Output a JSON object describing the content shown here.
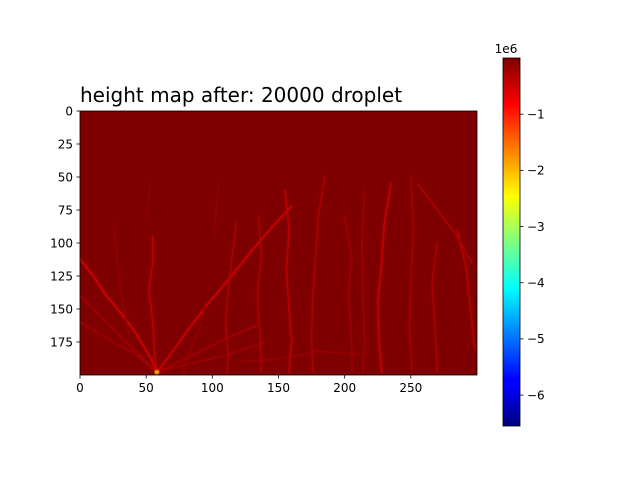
{
  "chart_data": {
    "type": "heatmap",
    "title": "height map after: 20000 droplet",
    "xlabel": "",
    "ylabel": "",
    "xlim": [
      0,
      300
    ],
    "ylim": [
      200,
      0
    ],
    "grid": false,
    "x_ticks": [
      0,
      50,
      100,
      150,
      200,
      250
    ],
    "y_ticks": [
      0,
      25,
      50,
      75,
      100,
      125,
      150,
      175
    ],
    "colormap": "jet",
    "colorbar": {
      "range": [
        -6.55,
        0
      ],
      "ticks": [
        -1,
        -2,
        -3,
        -4,
        -5,
        -6
      ],
      "scale_label": "1e6",
      "position": "right"
    },
    "background_value": 0,
    "channels": [
      {
        "path": [
          [
            0,
            112
          ],
          [
            10,
            125
          ],
          [
            20,
            140
          ],
          [
            30,
            152
          ],
          [
            40,
            165
          ],
          [
            48,
            178
          ],
          [
            54,
            188
          ],
          [
            58,
            198
          ]
        ],
        "level": -0.6
      },
      {
        "path": [
          [
            0,
            140
          ],
          [
            15,
            155
          ],
          [
            30,
            170
          ],
          [
            45,
            185
          ],
          [
            58,
            198
          ]
        ],
        "level": -0.3
      },
      {
        "path": [
          [
            0,
            160
          ],
          [
            20,
            172
          ],
          [
            40,
            183
          ],
          [
            58,
            198
          ]
        ],
        "level": -0.25
      },
      {
        "path": [
          [
            25,
            85
          ],
          [
            28,
            110
          ],
          [
            30,
            130
          ],
          [
            33,
            150
          ],
          [
            37,
            170
          ]
        ],
        "level": -0.2
      },
      {
        "path": [
          [
            55,
            95
          ],
          [
            55,
            115
          ],
          [
            52,
            135
          ],
          [
            55,
            160
          ],
          [
            56,
            180
          ],
          [
            58,
            198
          ]
        ],
        "level": -0.45
      },
      {
        "path": [
          [
            58,
            198
          ],
          [
            68,
            185
          ],
          [
            80,
            168
          ],
          [
            95,
            148
          ],
          [
            112,
            128
          ],
          [
            128,
            108
          ],
          [
            145,
            88
          ],
          [
            160,
            72
          ]
        ],
        "level": -0.55
      },
      {
        "path": [
          [
            58,
            198
          ],
          [
            75,
            190
          ],
          [
            95,
            180
          ],
          [
            115,
            170
          ],
          [
            135,
            162
          ]
        ],
        "level": -0.3
      },
      {
        "path": [
          [
            58,
            198
          ],
          [
            80,
            192
          ],
          [
            110,
            185
          ],
          [
            140,
            175
          ]
        ],
        "level": -0.25
      },
      {
        "path": [
          [
            53,
            55
          ],
          [
            52,
            70
          ],
          [
            50,
            82
          ]
        ],
        "level": -0.15
      },
      {
        "path": [
          [
            105,
            55
          ],
          [
            103,
            75
          ],
          [
            101,
            95
          ]
        ],
        "level": -0.15
      },
      {
        "path": [
          [
            118,
            85
          ],
          [
            115,
            110
          ],
          [
            112,
            135
          ],
          [
            110,
            160
          ],
          [
            112,
            185
          ],
          [
            111,
            198
          ]
        ],
        "level": -0.35
      },
      {
        "path": [
          [
            135,
            80
          ],
          [
            137,
            110
          ],
          [
            134,
            140
          ],
          [
            136,
            170
          ],
          [
            137,
            198
          ]
        ],
        "level": -0.35
      },
      {
        "path": [
          [
            155,
            60
          ],
          [
            158,
            90
          ],
          [
            156,
            120
          ],
          [
            158,
            150
          ],
          [
            160,
            175
          ],
          [
            158,
            198
          ]
        ],
        "level": -0.45
      },
      {
        "path": [
          [
            185,
            50
          ],
          [
            180,
            80
          ],
          [
            178,
            110
          ],
          [
            176,
            140
          ],
          [
            175,
            170
          ],
          [
            176,
            198
          ]
        ],
        "level": -0.35
      },
      {
        "path": [
          [
            215,
            60
          ],
          [
            213,
            100
          ],
          [
            214,
            140
          ],
          [
            215,
            175
          ],
          [
            214,
            198
          ]
        ],
        "level": -0.25
      },
      {
        "path": [
          [
            235,
            55
          ],
          [
            230,
            85
          ],
          [
            228,
            115
          ],
          [
            225,
            145
          ],
          [
            226,
            175
          ],
          [
            228,
            198
          ]
        ],
        "level": -0.5
      },
      {
        "path": [
          [
            250,
            50
          ],
          [
            252,
            90
          ],
          [
            250,
            130
          ],
          [
            249,
            165
          ],
          [
            251,
            198
          ]
        ],
        "level": -0.3
      },
      {
        "path": [
          [
            270,
            100
          ],
          [
            266,
            130
          ],
          [
            268,
            160
          ],
          [
            270,
            198
          ]
        ],
        "level": -0.35
      },
      {
        "path": [
          [
            255,
            55
          ],
          [
            270,
            75
          ],
          [
            285,
            95
          ],
          [
            296,
            115
          ]
        ],
        "level": -0.35
      },
      {
        "path": [
          [
            285,
            90
          ],
          [
            292,
            120
          ],
          [
            295,
            150
          ],
          [
            298,
            180
          ]
        ],
        "level": -0.4
      },
      {
        "path": [
          [
            75,
            210
          ],
          [
            82,
            185
          ],
          [
            90,
            165
          ],
          [
            95,
            145
          ]
        ],
        "level": -0.2
      },
      {
        "path": [
          [
            200,
            80
          ],
          [
            205,
            110
          ],
          [
            203,
            140
          ],
          [
            205,
            170
          ],
          [
            206,
            198
          ]
        ],
        "level": -0.25
      },
      {
        "path": [
          [
            120,
            190
          ],
          [
            150,
            188
          ],
          [
            180,
            182
          ],
          [
            215,
            185
          ]
        ],
        "level": -0.2
      }
    ],
    "peak": {
      "x": 58,
      "y": 198,
      "level": -1.9
    }
  }
}
